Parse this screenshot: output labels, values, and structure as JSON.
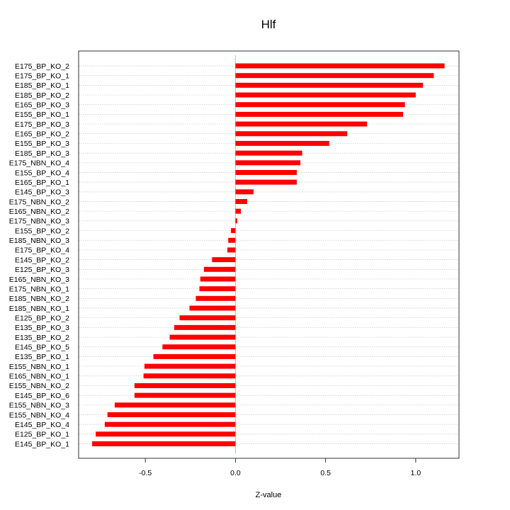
{
  "chart_data": {
    "type": "bar",
    "orientation": "horizontal",
    "title": "Hlf",
    "xlabel": "Z-value",
    "ylabel": "",
    "xlim": [
      -0.87,
      1.24
    ],
    "x_ticks": [
      -0.5,
      0.0,
      0.5,
      1.0
    ],
    "x_tick_labels": [
      "-0.5",
      "0.0",
      "0.5",
      "1.0"
    ],
    "grid": "horizontal dotted",
    "zero_line": true,
    "colors": {
      "bar": "#ff0000",
      "zero_line": "#90ee90",
      "grid": "#c8c8c8",
      "axis": "#000000"
    },
    "categories": [
      "E175_BP_KO_2",
      "E175_BP_KO_1",
      "E185_BP_KO_1",
      "E185_BP_KO_2",
      "E165_BP_KO_3",
      "E155_BP_KO_1",
      "E175_BP_KO_3",
      "E165_BP_KO_2",
      "E155_BP_KO_3",
      "E185_BP_KO_3",
      "E175_NBN_KO_4",
      "E155_BP_KO_4",
      "E165_BP_KO_1",
      "E145_BP_KO_3",
      "E175_NBN_KO_2",
      "E165_NBN_KO_2",
      "E175_NBN_KO_3",
      "E155_BP_KO_2",
      "E185_NBN_KO_3",
      "E175_BP_KO_4",
      "E145_BP_KO_2",
      "E125_BP_KO_3",
      "E165_NBN_KO_3",
      "E175_NBN_KO_1",
      "E185_NBN_KO_2",
      "E185_NBN_KO_1",
      "E125_BP_KO_2",
      "E135_BP_KO_3",
      "E135_BP_KO_2",
      "E145_BP_KO_5",
      "E135_BP_KO_1",
      "E155_NBN_KO_1",
      "E165_NBN_KO_1",
      "E155_NBN_KO_2",
      "E145_BP_KO_6",
      "E155_NBN_KO_3",
      "E155_NBN_KO_4",
      "E145_BP_KO_4",
      "E125_BP_KO_1",
      "E145_BP_KO_1"
    ],
    "values": [
      1.16,
      1.1,
      1.04,
      1.0,
      0.94,
      0.93,
      0.73,
      0.62,
      0.52,
      0.37,
      0.36,
      0.34,
      0.34,
      0.1,
      0.065,
      0.03,
      0.01,
      -0.025,
      -0.04,
      -0.045,
      -0.13,
      -0.175,
      -0.195,
      -0.2,
      -0.22,
      -0.255,
      -0.31,
      -0.34,
      -0.365,
      -0.405,
      -0.455,
      -0.505,
      -0.51,
      -0.56,
      -0.56,
      -0.67,
      -0.71,
      -0.725,
      -0.775,
      -0.795
    ]
  }
}
